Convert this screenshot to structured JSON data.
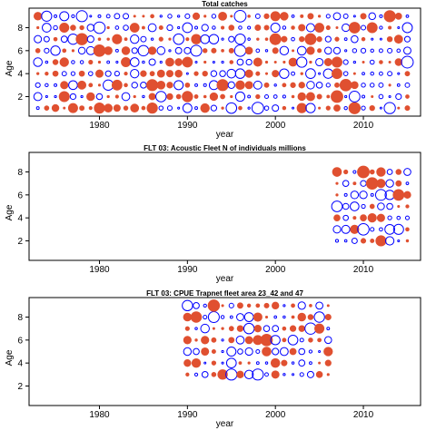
{
  "chart_data": [
    {
      "type": "scatter",
      "title": "Total catches",
      "xlabel": "year",
      "ylabel": "Age",
      "xlim": [
        1972,
        2016.5
      ],
      "ylim": [
        0.3,
        9.7
      ],
      "xticks": [
        1980,
        1990,
        2000,
        2010
      ],
      "yticks": [
        2,
        4,
        6,
        8
      ],
      "year_range": [
        1973,
        2015
      ],
      "age_range": [
        1,
        9
      ],
      "seed": 1,
      "point_style": "circle size = residual magnitude; blue open = positive, red filled = negative",
      "pos_color": "#0000ff",
      "neg_color": "#e05030"
    },
    {
      "type": "scatter",
      "title": "FLT 03: Acoustic Fleet N of individuals millions",
      "xlabel": "year",
      "ylabel": "Age",
      "xlim": [
        1972,
        2016.5
      ],
      "ylim": [
        0.3,
        9.7
      ],
      "xticks": [
        1980,
        1990,
        2000,
        2010
      ],
      "yticks": [
        2,
        4,
        6,
        8
      ],
      "year_range": [
        2007,
        2015
      ],
      "age_range": [
        2,
        8
      ],
      "seed": 2,
      "point_style": "circle size = residual magnitude; blue open = positive, red filled = negative",
      "pos_color": "#0000ff",
      "neg_color": "#e05030"
    },
    {
      "type": "scatter",
      "title": "FLT 03: CPUE Trapnet fleet area 23_42 and 47",
      "xlabel": "year",
      "ylabel": "Age",
      "xlim": [
        1972,
        2016.5
      ],
      "ylim": [
        0.3,
        9.7
      ],
      "xticks": [
        1980,
        1990,
        2000,
        2010
      ],
      "yticks": [
        2,
        4,
        6,
        8
      ],
      "year_range": [
        1990,
        2006
      ],
      "age_range": [
        3,
        9
      ],
      "seed": 3,
      "point_style": "circle size = residual magnitude; blue open = positive, red filled = negative",
      "pos_color": "#0000ff",
      "neg_color": "#e05030"
    }
  ]
}
